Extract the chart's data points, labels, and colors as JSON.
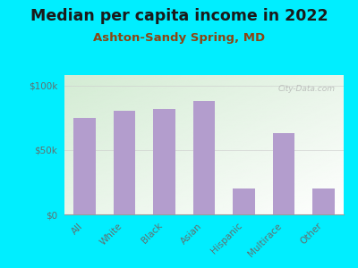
{
  "title": "Median per capita income in 2022",
  "subtitle": "Ashton-Sandy Spring, MD",
  "categories": [
    "All",
    "White",
    "Black",
    "Asian",
    "Hispanic",
    "Multirace",
    "Other"
  ],
  "values": [
    75000,
    80000,
    82000,
    88000,
    20000,
    63000,
    20000
  ],
  "bar_color": "#b39dcd",
  "background_outer": "#00eeff",
  "background_inner_colors": [
    "#d4ecd4",
    "#f5f5e0",
    "#ffffff"
  ],
  "title_color": "#1a1a1a",
  "subtitle_color": "#8B4513",
  "axis_label_color": "#607070",
  "yticks": [
    0,
    50000,
    100000
  ],
  "ytick_labels": [
    "$0",
    "$50k",
    "$100k"
  ],
  "ylim": [
    0,
    108000
  ],
  "watermark": "City-Data.com",
  "title_fontsize": 12.5,
  "subtitle_fontsize": 9.5,
  "tick_fontsize": 7.5,
  "grid_color": "#cccccc"
}
